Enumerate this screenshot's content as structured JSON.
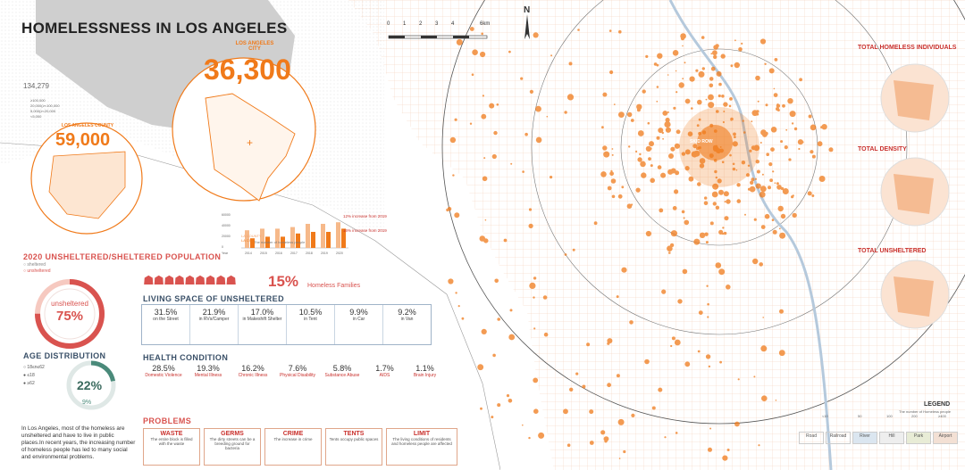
{
  "title": "HOMELESSNESS IN LOS ANGELES",
  "colors": {
    "accent": "#f07a1a",
    "red": "#d9534f",
    "blue": "#3a5068",
    "light": "#fbe3d2"
  },
  "us_map": {
    "count": "134,279",
    "legend": [
      "≥100,000",
      "20,000(≥<100,000",
      "5,000(≥<20,000",
      "<5,000"
    ]
  },
  "county": {
    "label": "LOS ANGELES COUNTY",
    "value": "59,000"
  },
  "city": {
    "label": "LOS ANGELES CITY",
    "value": "36,300"
  },
  "mini_chart": {
    "years": [
      "2014",
      "2015",
      "2016",
      "2017",
      "2018",
      "2019",
      "2020"
    ],
    "y_ticks": [
      "60000",
      "40000",
      "20000",
      "0"
    ],
    "note1": "12% increase from 2019",
    "note2": "16% increase from 2019",
    "legend_county": "LA COUNTY",
    "legend_city": "LA CITY",
    "legend_note": "The number of homeless people",
    "county_values": [
      0.55,
      0.6,
      0.6,
      0.65,
      0.75,
      0.75,
      0.8
    ],
    "city_values": [
      0.3,
      0.35,
      0.35,
      0.45,
      0.5,
      0.5,
      0.6
    ],
    "label_year": "Year"
  },
  "population": {
    "title": "2020 UNSHELTERED/SHELTERED POPULATION",
    "legend_sheltered": "sheltered",
    "legend_unsheltered": "unsheltered",
    "donut_label": "unsheltered",
    "donut_value": "75%",
    "families_pct": "15%",
    "families_label": "Homeless Families"
  },
  "living": {
    "title": "LIVING SPACE OF UNSHELTERED",
    "items": [
      {
        "pct": "31.5%",
        "label": "on the Street"
      },
      {
        "pct": "21.9%",
        "label": "in RVs/Camper"
      },
      {
        "pct": "17.0%",
        "label": "in Makeshift Shelter"
      },
      {
        "pct": "10.5%",
        "label": "in Tent"
      },
      {
        "pct": "9.9%",
        "label": "in Car"
      },
      {
        "pct": "9.2%",
        "label": "in Van"
      }
    ]
  },
  "age": {
    "title": "AGE DISTRIBUTION",
    "legend": [
      "18≤n≤62",
      "≤18",
      "≥62"
    ],
    "big": "22%",
    "small": "9%"
  },
  "health": {
    "title": "HEALTH CONDITION",
    "items": [
      {
        "pct": "28.5%",
        "label": "Domestic Violence"
      },
      {
        "pct": "19.3%",
        "label": "Mental Illness"
      },
      {
        "pct": "16.2%",
        "label": "Chronic Illness"
      },
      {
        "pct": "7.6%",
        "label": "Physical Disability"
      },
      {
        "pct": "5.8%",
        "label": "Substance Abuse"
      },
      {
        "pct": "1.7%",
        "label": "AIDS"
      },
      {
        "pct": "1.1%",
        "label": "Brain Injury"
      }
    ]
  },
  "problems": {
    "title": "PROBLEMS",
    "items": [
      {
        "t": "WASTE",
        "d": "The entire block is filled with the waste"
      },
      {
        "t": "GERMS",
        "d": "The dirty streets can be a breeding ground for bacteria"
      },
      {
        "t": "CRIME",
        "d": "The increase in crime"
      },
      {
        "t": "TENTS",
        "d": "Tents occupy public spaces"
      },
      {
        "t": "LIMIT",
        "d": "The living conditions of residents and homeless people are affected"
      }
    ]
  },
  "description": "In Los Angeles, most of the homeless are unsheltered and have to live in public places.In recent years, the increasing number of homeless people has led to many social and environmental problems.",
  "scale": {
    "ticks": [
      "0",
      "1",
      "2",
      "3",
      "4",
      "6km"
    ],
    "north": "N"
  },
  "map_labels": {
    "skidrow": "SKID ROW"
  },
  "side": [
    "TOTAL HOMELESS INDIVIDUALS",
    "TOTAL DENSITY",
    "TOTAL UNSHELTERED"
  ],
  "legend": {
    "title": "LEGEND",
    "subtitle": "The number of Homeless people",
    "sizes": [
      "<10",
      "50",
      "100",
      "200",
      "≥400"
    ],
    "items": [
      "Road",
      "Railroad",
      "River",
      "Hill",
      "Park",
      "Airport"
    ]
  }
}
